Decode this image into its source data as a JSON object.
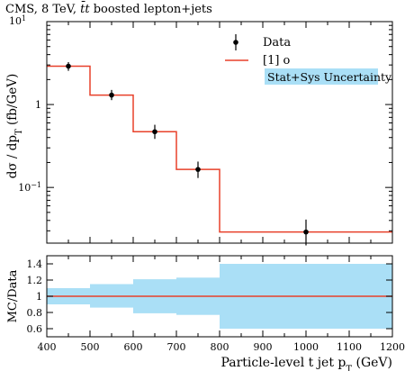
{
  "header": {
    "text": "CMS, 8 TeV, $t\\bar{t}$ boosted lepton+jets"
  },
  "legend": {
    "position": "top-right",
    "data_label": "Data",
    "mc_label": "[1] o",
    "unc_label": "Stat+Sys Uncertainty"
  },
  "colors": {
    "mc_line": "#e8402a",
    "uncertainty": "#aadff6",
    "data": "#000000"
  },
  "chart_data": [
    {
      "type": "line",
      "panel": "main",
      "log_y": true,
      "xlabel": "",
      "ylabel": "dσ / dp_T (fb/GeV)",
      "xlim": [
        400,
        1200
      ],
      "ylim": [
        0.0213,
        10
      ],
      "y_ticks": [
        "1",
        "10^-1"
      ],
      "y_top_tick": "10^1",
      "bin_edges": [
        400,
        500,
        600,
        700,
        800,
        1200
      ],
      "series": [
        {
          "name": "Data",
          "x": [
            450,
            550,
            650,
            750,
            1000
          ],
          "y": [
            2.9,
            1.3,
            0.47,
            0.165,
            0.029
          ],
          "y_err_low": [
            0.35,
            0.17,
            0.085,
            0.035,
            0.009
          ],
          "y_err_high": [
            0.35,
            0.2,
            0.1,
            0.04,
            0.012
          ]
        },
        {
          "name": "[1] o",
          "histogram": true,
          "values": [
            2.9,
            1.3,
            0.47,
            0.165,
            0.029
          ]
        }
      ]
    },
    {
      "type": "area",
      "panel": "ratio",
      "xlabel": "Particle-level t jet p_T (GeV)",
      "ylabel": "MC/Data",
      "xlim": [
        400,
        1200
      ],
      "ylim": [
        0.5,
        1.5
      ],
      "x_ticks": [
        400,
        500,
        600,
        700,
        800,
        900,
        1000,
        1100,
        1200
      ],
      "y_ticks": [
        "0.6",
        "0.8",
        "1",
        "1.2",
        "1.4"
      ],
      "bin_edges": [
        400,
        500,
        600,
        700,
        800,
        1200
      ],
      "series": [
        {
          "name": "Stat+Sys Uncertainty",
          "band_low": [
            0.9,
            0.86,
            0.79,
            0.77,
            0.6
          ],
          "band_high": [
            1.1,
            1.15,
            1.21,
            1.23,
            1.4
          ]
        },
        {
          "name": "[1] o",
          "values": [
            1,
            1,
            1,
            1,
            1
          ]
        }
      ]
    }
  ]
}
